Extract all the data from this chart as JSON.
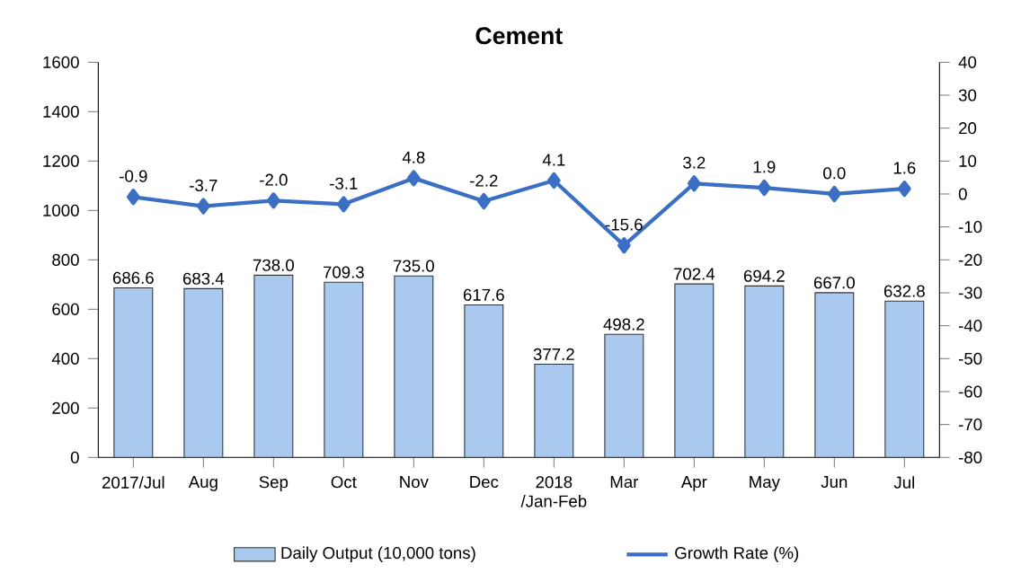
{
  "chart_data": {
    "type": "bar",
    "title": "Cement",
    "categories": [
      "2017/Jul",
      "Aug",
      "Sep",
      "Oct",
      "Nov",
      "Dec",
      "2018 /Jan-Feb",
      "Mar",
      "Apr",
      "May",
      "Jun",
      "Jul"
    ],
    "series": [
      {
        "name": "Daily Output (10,000 tons)",
        "color": "#a9c9ee",
        "values": [
          686.6,
          683.4,
          738.0,
          709.3,
          735.0,
          617.6,
          377.2,
          498.2,
          702.4,
          694.2,
          667.0,
          632.8
        ],
        "value_labels": [
          "686.6",
          "683.4",
          "738.0",
          "709.3",
          "735.0",
          "617.6",
          "377.2",
          "498.2",
          "702.4",
          "694.2",
          "667.0",
          "632.8"
        ]
      },
      {
        "name": "Growth Rate (%)",
        "type": "line",
        "axis": "y2",
        "color": "#3a6fc4",
        "marker": "diamond",
        "values": [
          -0.9,
          -3.7,
          -2.0,
          -3.1,
          4.8,
          -2.2,
          4.1,
          -15.6,
          3.2,
          1.9,
          0.0,
          1.6
        ],
        "value_labels": [
          "-0.9",
          "-3.7",
          "-2.0",
          "-3.1",
          "4.8",
          "-2.2",
          "4.1",
          "-15.6",
          "3.2",
          "1.9",
          "0.0",
          "1.6"
        ]
      }
    ],
    "ylim": [
      0,
      1600
    ],
    "yticks": [
      0,
      200,
      400,
      600,
      800,
      1000,
      1200,
      1400,
      1600
    ],
    "y2lim": [
      -80,
      40
    ],
    "y2ticks": [
      -80,
      -70,
      -60,
      -50,
      -40,
      -30,
      -20,
      -10,
      0,
      10,
      20,
      30,
      40
    ],
    "legend": "bottom",
    "grid": false
  }
}
